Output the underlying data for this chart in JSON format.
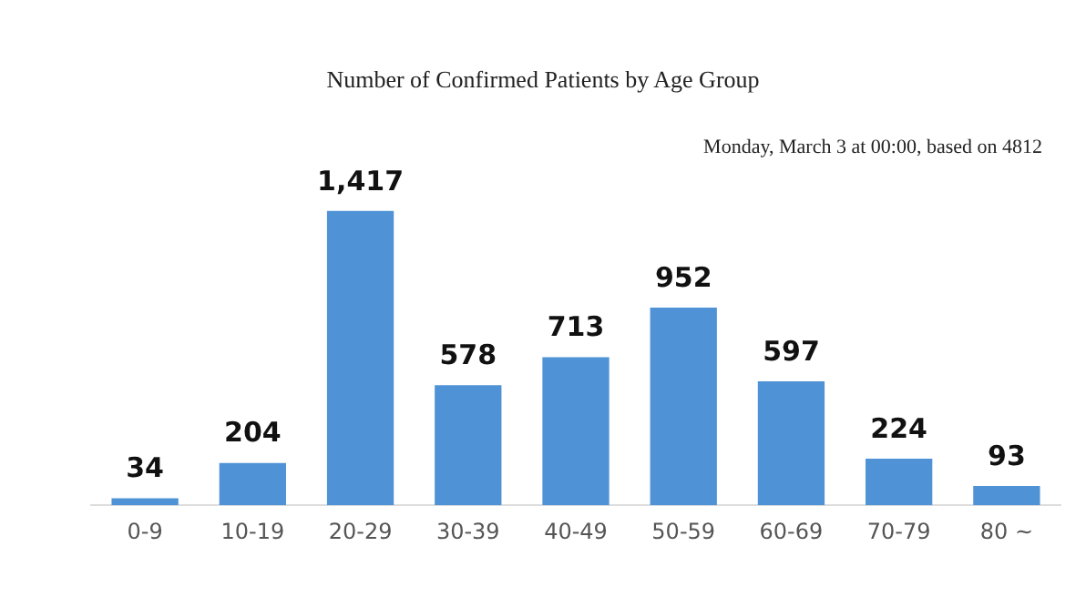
{
  "chart_data": {
    "type": "bar",
    "title": "Number of Confirmed Patients by Age Group",
    "annotations": [
      "Monday, March 3 at 00:00, based on 4812"
    ],
    "categories": [
      "0-9",
      "10-19",
      "20-29",
      "30-39",
      "40-49",
      "50-59",
      "60-69",
      "70-79",
      "80 ~"
    ],
    "values": [
      34,
      204,
      1417,
      578,
      713,
      952,
      597,
      224,
      93
    ],
    "value_labels": [
      "34",
      "204",
      "1,417",
      "578",
      "713",
      "952",
      "597",
      "224",
      "93"
    ],
    "color": "#4f93d6",
    "grid": false,
    "legend": false
  }
}
